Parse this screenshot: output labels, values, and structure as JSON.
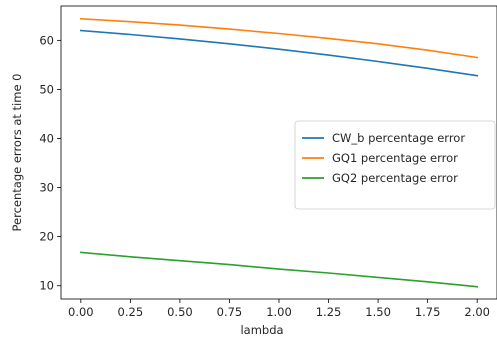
{
  "chart_data": {
    "type": "line",
    "xlabel": "lambda",
    "ylabel": "Percentage errors at time 0",
    "xlim": [
      -0.1,
      2.1
    ],
    "ylim": [
      7.3,
      67.0
    ],
    "xticks": [
      "0.00",
      "0.25",
      "0.50",
      "0.75",
      "1.00",
      "1.25",
      "1.50",
      "1.75",
      "2.00"
    ],
    "yticks": [
      "10",
      "20",
      "30",
      "40",
      "50",
      "60"
    ],
    "legend_position": "center-right",
    "grid": false,
    "series": [
      {
        "name": "CW_b percentage error",
        "color": "#1f77b4",
        "x": [
          0.0,
          0.25,
          0.5,
          0.75,
          1.0,
          1.25,
          1.5,
          1.75,
          2.0
        ],
        "values": [
          62.0,
          61.2,
          60.3,
          59.3,
          58.2,
          57.0,
          55.7,
          54.3,
          52.8
        ]
      },
      {
        "name": "GQ1 percentage error",
        "color": "#ff7f0e",
        "x": [
          0.0,
          0.25,
          0.5,
          0.75,
          1.0,
          1.25,
          1.5,
          1.75,
          2.0
        ],
        "values": [
          64.4,
          63.8,
          63.1,
          62.3,
          61.4,
          60.4,
          59.3,
          58.0,
          56.5
        ]
      },
      {
        "name": "GQ2 percentage error",
        "color": "#2ca02c",
        "x": [
          0.0,
          0.25,
          0.5,
          0.75,
          1.0,
          1.25,
          1.5,
          1.75,
          2.0
        ],
        "values": [
          16.8,
          15.9,
          15.1,
          14.3,
          13.4,
          12.6,
          11.7,
          10.8,
          9.8
        ]
      }
    ]
  }
}
